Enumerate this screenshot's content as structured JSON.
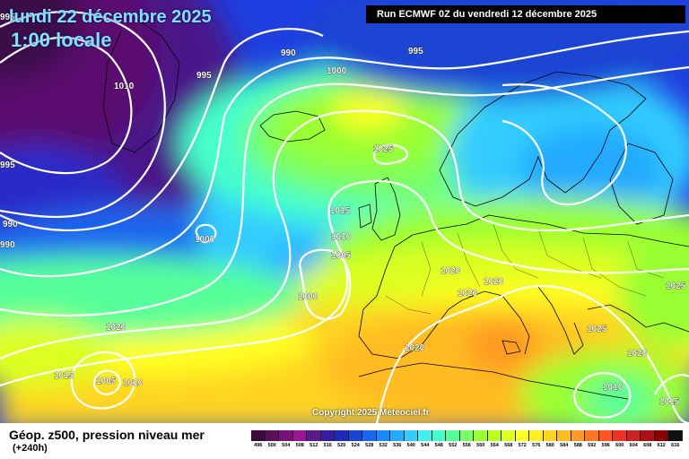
{
  "header": {
    "date": "lundi 22 décembre 2025",
    "local_time": "1:00 locale",
    "run": "Run ECMWF 0Z du vendredi 12 décembre 2025"
  },
  "footer": {
    "parameter": "Géop. z500, pression niveau mer",
    "lead_time": "(+240h)",
    "copyright": "Copyright 2025 Meteociel.fr"
  },
  "isobar_labels": [
    {
      "id": "l995-a",
      "text": "995"
    },
    {
      "id": "l990-a",
      "text": "990"
    },
    {
      "id": "l995-b",
      "text": "995"
    },
    {
      "id": "l1000-a",
      "text": "1000"
    },
    {
      "id": "l995-c",
      "text": "995"
    },
    {
      "id": "l1010-a",
      "text": "1010"
    },
    {
      "id": "l995-d",
      "text": "995"
    },
    {
      "id": "l990-b",
      "text": "990"
    },
    {
      "id": "l990-c",
      "text": "990"
    },
    {
      "id": "l1000-b",
      "text": "1000"
    },
    {
      "id": "l1025-a",
      "text": "1025"
    },
    {
      "id": "l1015-a",
      "text": "1015"
    },
    {
      "id": "l1010-b",
      "text": "1010"
    },
    {
      "id": "l1005-a",
      "text": "1005"
    },
    {
      "id": "l1000-c",
      "text": "1000"
    },
    {
      "id": "l1020-a",
      "text": "1020"
    },
    {
      "id": "l1020-b",
      "text": "1020"
    },
    {
      "id": "l1020-c",
      "text": "1020"
    },
    {
      "id": "l1025-b",
      "text": "1025"
    },
    {
      "id": "l1020-d",
      "text": "1020"
    },
    {
      "id": "l1025-c",
      "text": "1025"
    },
    {
      "id": "l1020-e",
      "text": "1020"
    },
    {
      "id": "l1015-b",
      "text": "1015"
    },
    {
      "id": "l1005-b",
      "text": "1005"
    },
    {
      "id": "l1010-c",
      "text": "1010"
    },
    {
      "id": "l1020-f",
      "text": "1020"
    },
    {
      "id": "l1010-d",
      "text": "1010"
    },
    {
      "id": "l1015-c",
      "text": "1015"
    }
  ],
  "colorbar": {
    "labels": [
      "496",
      "500",
      "504",
      "508",
      "512",
      "516",
      "520",
      "524",
      "528",
      "532",
      "536",
      "540",
      "544",
      "548",
      "552",
      "556",
      "560",
      "564",
      "568",
      "572",
      "576",
      "580",
      "584",
      "588",
      "592",
      "596",
      "600",
      "604",
      "608",
      "612",
      "616"
    ],
    "colors": [
      "#3a0a3a",
      "#5a0f5a",
      "#7a107a",
      "#9a149a",
      "#5a1a8a",
      "#3a1aa0",
      "#1f2ab8",
      "#1a44d4",
      "#1a66ee",
      "#1a88ff",
      "#22aaff",
      "#33ccff",
      "#44eeee",
      "#44ffcc",
      "#55ff99",
      "#77ff66",
      "#99ff33",
      "#bbff22",
      "#ddff22",
      "#ffff22",
      "#ffee22",
      "#ffd422",
      "#ffbb22",
      "#ff9922",
      "#ff7722",
      "#ff5522",
      "#ee3322",
      "#cc2222",
      "#aa1111",
      "#880000",
      "#111111"
    ]
  }
}
